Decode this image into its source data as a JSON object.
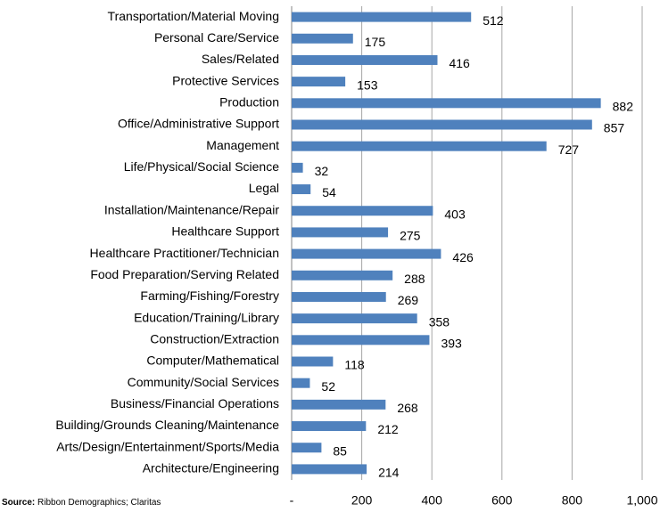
{
  "chart_data": {
    "type": "bar",
    "orientation": "horizontal",
    "categories": [
      "Transportation/Material Moving",
      "Personal Care/Service",
      "Sales/Related",
      "Protective Services",
      "Production",
      "Office/Administrative Support",
      "Management",
      "Life/Physical/Social Science",
      "Legal",
      "Installation/Maintenance/Repair",
      "Healthcare Support",
      "Healthcare Practitioner/Technician",
      "Food Preparation/Serving Related",
      "Farming/Fishing/Forestry",
      "Education/Training/Library",
      "Construction/Extraction",
      "Computer/Mathematical",
      "Community/Social Services",
      "Business/Financial Operations",
      "Building/Grounds Cleaning/Maintenance",
      "Arts/Design/Entertainment/Sports/Media",
      "Architecture/Engineering"
    ],
    "values": [
      512,
      175,
      416,
      153,
      882,
      857,
      727,
      32,
      54,
      403,
      275,
      426,
      288,
      269,
      358,
      393,
      118,
      52,
      268,
      212,
      85,
      214
    ],
    "color": "#4f81bd",
    "xlim": [
      0,
      1000
    ],
    "xticks": [
      {
        "value": 0,
        "label": "-"
      },
      200,
      400,
      600,
      800,
      {
        "value": 1000,
        "label": "1,000"
      }
    ],
    "grid": true,
    "source_label": "Source:",
    "source": "Ribbon Demographics; Claritas"
  }
}
